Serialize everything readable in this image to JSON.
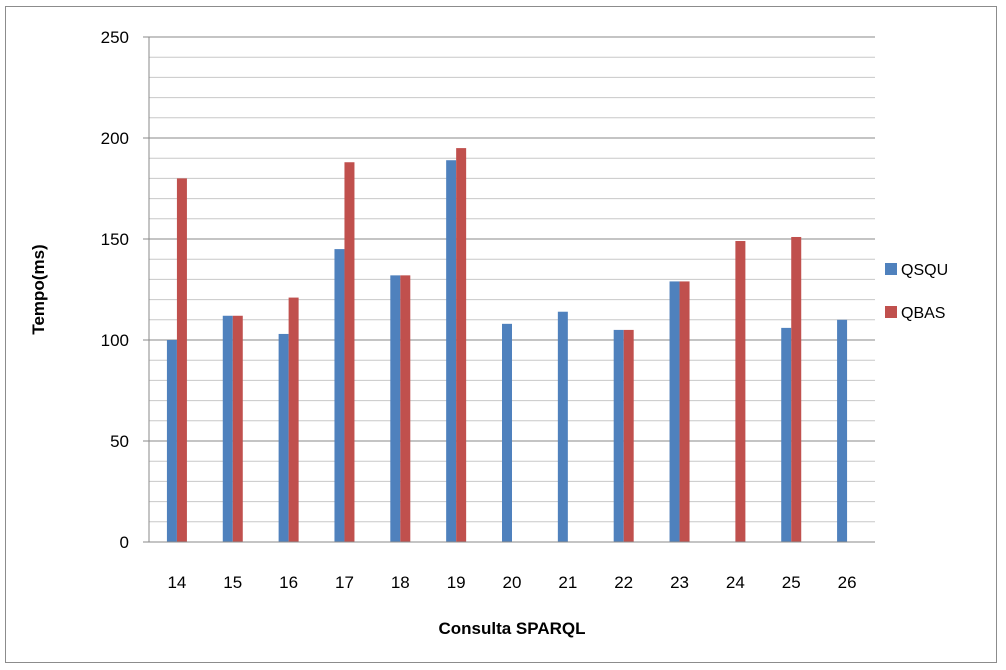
{
  "chart_data": {
    "type": "bar",
    "title": "",
    "xlabel": "Consulta SPARQL",
    "ylabel": "Tempo(ms)",
    "categories": [
      "14",
      "15",
      "16",
      "17",
      "18",
      "19",
      "20",
      "21",
      "22",
      "23",
      "24",
      "25",
      "26"
    ],
    "series": [
      {
        "name": "QSQU",
        "color": "#4f81bd",
        "values": [
          100,
          112,
          103,
          145,
          132,
          189,
          108,
          114,
          105,
          129,
          null,
          106,
          110
        ]
      },
      {
        "name": "QBAS",
        "color": "#c0504d",
        "values": [
          180,
          112,
          121,
          188,
          132,
          195,
          null,
          null,
          105,
          129,
          149,
          151,
          null
        ]
      }
    ],
    "ylim": [
      0,
      250
    ],
    "yticks": [
      0,
      50,
      100,
      150,
      200,
      250
    ],
    "minor_grid_step": 10,
    "grid": true,
    "legend_position": "right"
  }
}
